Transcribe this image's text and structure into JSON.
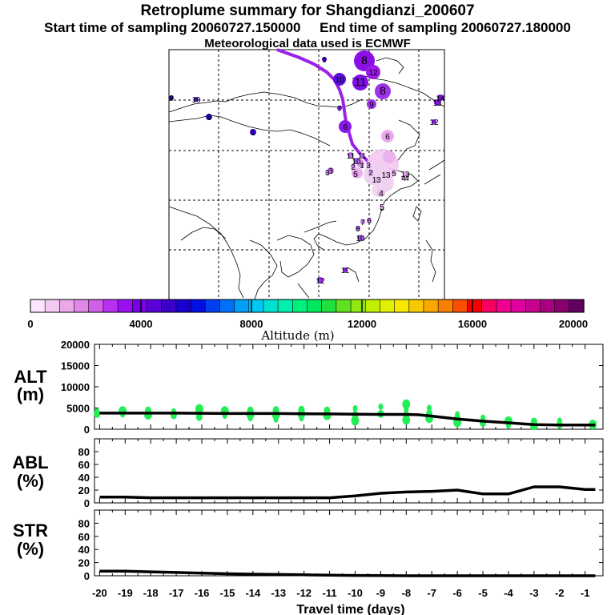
{
  "header": {
    "title": "Retroplume summary for Shangdianzi_200607",
    "start_time": "Start time of sampling 20060727.150000",
    "end_time": "End time of sampling 20060727.180000",
    "met_data": "Meteorological data used is ECMWF"
  },
  "colorbar": {
    "xlabel": "Altitude (m)",
    "ticks": [
      "0",
      "4000",
      "8000",
      "12000",
      "16000",
      "20000"
    ],
    "colors": [
      "#fbe6fb",
      "#f3c8f3",
      "#eaa8ea",
      "#e088e8",
      "#d060e8",
      "#b830f0",
      "#9a10f0",
      "#7a00e8",
      "#5a00d8",
      "#3a00c8",
      "#1a00d0",
      "#0010e0",
      "#0040f0",
      "#0070f8",
      "#00a0f8",
      "#00c8f0",
      "#00e0d0",
      "#00f0b0",
      "#00f080",
      "#00e860",
      "#20e040",
      "#60e020",
      "#90e810",
      "#c0f000",
      "#e0f000",
      "#f8e800",
      "#f8c800",
      "#f8a800",
      "#f88000",
      "#f85000",
      "#f80000",
      "#f80060",
      "#f00090",
      "#e000a0",
      "#c80090",
      "#a80080",
      "#880070",
      "#600060"
    ]
  },
  "map": {
    "labels": [
      "8",
      "9",
      "12",
      "11",
      "8",
      "10",
      "9",
      "7",
      "6",
      "6",
      "11",
      "10",
      "5",
      "5",
      "4",
      "3",
      "2",
      "1",
      "4",
      "5",
      "3",
      "2",
      "13",
      "13",
      "13",
      "14",
      "11",
      "12",
      "9",
      "10",
      "1",
      "5",
      "3",
      "4",
      "5",
      "7",
      "6",
      "8",
      "10",
      "11",
      "12",
      "13"
    ]
  },
  "chart_data": [
    {
      "type": "scatter+line",
      "panel": "ALT",
      "ylabel": [
        "ALT",
        "(m)"
      ],
      "ylim": [
        0,
        20000
      ],
      "yticks": [
        0,
        5000,
        10000,
        15000,
        20000
      ],
      "line": {
        "x": [
          -20,
          -19,
          -18,
          -17,
          -16,
          -15,
          -14,
          -13,
          -12,
          -11,
          -10,
          -9,
          -8,
          -7.5,
          -7,
          -6,
          -5,
          -4,
          -3,
          -2,
          -1,
          -0.6
        ],
        "y": [
          3800,
          3800,
          3800,
          3800,
          3750,
          3700,
          3700,
          3700,
          3650,
          3600,
          3550,
          3500,
          3500,
          3400,
          3100,
          2400,
          1900,
          1500,
          1100,
          1000,
          1000,
          1000
        ]
      },
      "points": {
        "x": [
          -20.1,
          -20.1,
          -19.1,
          -19.1,
          -18.1,
          -18.1,
          -17.1,
          -17.1,
          -16.1,
          -16.1,
          -16.1,
          -15.1,
          -15.1,
          -14.1,
          -14.1,
          -14.1,
          -13.1,
          -13.1,
          -13.1,
          -12.1,
          -12.1,
          -12.1,
          -11.1,
          -11.1,
          -10.0,
          -10.0,
          -10.0,
          -9.0,
          -9.0,
          -8.0,
          -8.0,
          -8.0,
          -8.0,
          -7.1,
          -7.1,
          -7.1,
          -6.0,
          -6.0,
          -6.0,
          -5.0,
          -5.0,
          -4.0,
          -4.0,
          -3.0,
          -3.0,
          -2.0,
          -2.0,
          -0.7
        ],
        "y": [
          4200,
          3600,
          4300,
          3500,
          4400,
          3400,
          4200,
          3300,
          4800,
          3900,
          2900,
          4300,
          3200,
          4400,
          3500,
          2600,
          4500,
          3400,
          2300,
          4600,
          3600,
          2600,
          4400,
          3300,
          4900,
          3400,
          2000,
          5300,
          3600,
          5900,
          4600,
          3300,
          2200,
          5000,
          3700,
          2600,
          3500,
          2600,
          1600,
          2700,
          1500,
          1900,
          900,
          1800,
          900,
          2000,
          1100,
          1100
        ]
      }
    },
    {
      "type": "line",
      "panel": "ABL",
      "ylabel": [
        "ABL",
        "(%)"
      ],
      "ylim": [
        0,
        100
      ],
      "yticks": [
        0,
        20,
        40,
        60,
        80
      ],
      "x": [
        -20,
        -19,
        -18,
        -17,
        -16,
        -15,
        -14,
        -13,
        -12,
        -11,
        -10,
        -9,
        -8,
        -7,
        -6,
        -5,
        -4,
        -3,
        -2,
        -1,
        -0.6
      ],
      "y": [
        9,
        9,
        8,
        8,
        8,
        8,
        8,
        8,
        8,
        8,
        11,
        15,
        17,
        18,
        20,
        14,
        14,
        25,
        25,
        21,
        21
      ]
    },
    {
      "type": "line",
      "panel": "STR",
      "ylabel": [
        "STR",
        "(%)"
      ],
      "ylim": [
        0,
        100
      ],
      "yticks": [
        0,
        20,
        40,
        60,
        80
      ],
      "x": [
        -20,
        -19,
        -18,
        -17,
        -16,
        -15,
        -14,
        -13,
        -12,
        -11,
        -10,
        -9,
        -8,
        -7,
        -6,
        -5,
        -4,
        -3,
        -2,
        -1,
        -0.6
      ],
      "y": [
        7,
        7,
        6,
        5,
        4,
        3,
        2.5,
        2,
        1.5,
        1,
        0.5,
        0.3,
        0,
        0,
        0,
        0,
        0,
        0,
        0,
        0,
        0
      ]
    }
  ],
  "xaxis": {
    "xlabel": "Travel time (days)",
    "xlim": [
      -20.2,
      -0.3
    ],
    "ticks": [
      "-20",
      "-19",
      "-18",
      "-17",
      "-16",
      "-15",
      "-14",
      "-13",
      "-12",
      "-11",
      "-10",
      "-9",
      "-8",
      "-7",
      "-6",
      "-5",
      "-4",
      "-3",
      "-2",
      "-1"
    ]
  }
}
